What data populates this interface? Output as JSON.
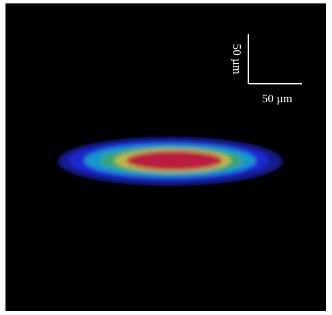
{
  "scale_bar": {
    "vertical_label": "50 µm",
    "horizontal_label": "50 µm"
  }
}
